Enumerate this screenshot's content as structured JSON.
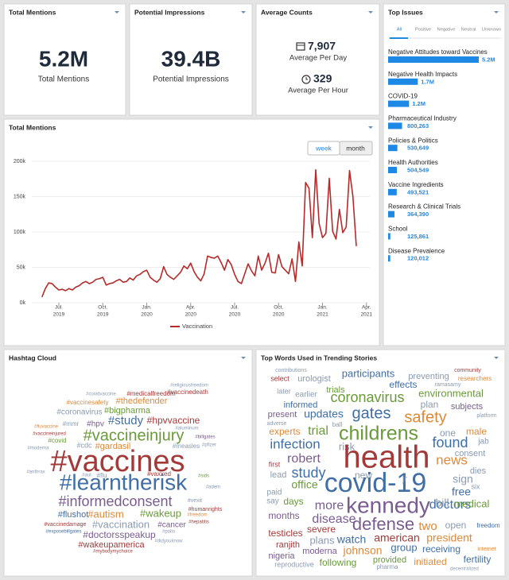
{
  "total_mentions_card": {
    "title": "Total Mentions",
    "value": "5.2M",
    "label": "Total Mentions"
  },
  "impressions_card": {
    "title": "Potential Impressions",
    "value": "39.4B",
    "label": "Potential Impressions"
  },
  "average_card": {
    "title": "Average Counts",
    "per_day": "7,907",
    "per_day_label": "Average Per Day",
    "per_hour": "329",
    "per_hour_label": "Average Per Hour"
  },
  "top_issues": {
    "title": "Top Issues",
    "tabs": [
      "All",
      "Positive",
      "Negative",
      "Neutral",
      "Unknown"
    ],
    "items": [
      "Negative Attitudes toward Vaccines",
      "Negative Health Impacts",
      "COVID-19",
      "Pharmaceutical Industry",
      "Policies & Politics",
      "Health Authorities",
      "Vaccine Ingredients",
      "Research & Clinical Trials",
      "School",
      "Disease Prevalence"
    ],
    "values": [
      5200000,
      1700000,
      1200000,
      800263,
      530649,
      504549,
      493521,
      364390,
      125861,
      120012
    ],
    "value_labels": [
      "5.2M",
      "1.7M",
      "1.2M",
      "800,263",
      "530,649",
      "504,549",
      "493,521",
      "364,390",
      "125,861",
      "120,012"
    ],
    "color": "#1e88e5"
  },
  "chart_data": {
    "type": "line",
    "title": "Total Mentions",
    "buttons": [
      "week",
      "month"
    ],
    "series": [
      {
        "name": "Vaccination",
        "color": "#b52b2b",
        "values": [
          8,
          20,
          28,
          27,
          22,
          18,
          19,
          17,
          20,
          18,
          22,
          24,
          28,
          30,
          27,
          29,
          33,
          34,
          36,
          25,
          27,
          28,
          31,
          33,
          29,
          30,
          35,
          32,
          38,
          40,
          44,
          46,
          36,
          32,
          29,
          34,
          51,
          40,
          36,
          33,
          38,
          43,
          52,
          48,
          56,
          44,
          36,
          31,
          41,
          66,
          64,
          63,
          66,
          57,
          46,
          61,
          54,
          40,
          30,
          27,
          41,
          55,
          45,
          38,
          66,
          46,
          56,
          70,
          43,
          42,
          68,
          51,
          46,
          41,
          62,
          30,
          86,
          52,
          170,
          162,
          92,
          188,
          112,
          92,
          98,
          176,
          101,
          90,
          132,
          99,
          107,
          187,
          150,
          80
        ]
      }
    ],
    "xlim": [
      -3,
      97
    ],
    "xticks": [
      {
        "value": 5,
        "label": "Jul.",
        "year": "2019"
      },
      {
        "value": 18,
        "label": "Oct.",
        "year": "2019"
      },
      {
        "value": 31,
        "label": "Jan.",
        "year": "2020"
      },
      {
        "value": 44,
        "label": "Apr.",
        "year": "2020"
      },
      {
        "value": 57,
        "label": "Jul.",
        "year": "2020"
      },
      {
        "value": 70,
        "label": "Oct.",
        "year": "2020"
      },
      {
        "value": 83,
        "label": "Jan.",
        "year": "2021"
      },
      {
        "value": 96,
        "label": "Apr.",
        "year": "2021"
      }
    ],
    "ylim": [
      0,
      200
    ],
    "yticks": [
      {
        "value": 0,
        "label": "0k"
      },
      {
        "value": 50,
        "label": "50k"
      },
      {
        "value": 100,
        "label": "100k"
      },
      {
        "value": 150,
        "label": "150k"
      },
      {
        "value": 200,
        "label": "200k"
      }
    ],
    "grid": true
  },
  "hashtag_cloud": {
    "title": "Hashtag Cloud",
    "words": [
      "#covidvaccine",
      "#medicalfreedom",
      "#vaccinesafety",
      "#thedefender",
      "#religiousfreedom",
      "#vaccinedeath",
      "#coronavirus",
      "#bigpharma",
      "#study",
      "#hpvvaccine",
      "#aluminum",
      "#fluvaccine",
      "#mmr",
      "#hpv",
      "#vaccineinjured",
      "#vaccineinjury",
      "#billgates",
      "#covid",
      "#cdc",
      "#gardasil",
      "#measles",
      "#pfizer",
      "#moderna",
      "#vaccines",
      "#anthrax",
      "#aut",
      "#flu",
      "#vaxxed",
      "#sids",
      "#learntherisk",
      "#adem",
      "#informedconsent",
      "#vexit",
      "#humanrights",
      "#flushot",
      "#autism",
      "#wakeup",
      "#freedom",
      "#hepatitis",
      "#vaccinedamage",
      "#vaccination",
      "#cancer",
      "#exposebillgates",
      "#polio",
      "#doctorsspeakup",
      "#didyouknow",
      "#wakeupamerica",
      "#mybodymychoice"
    ]
  },
  "top_words": {
    "title": "Top Words Used in Trending Stories",
    "words": [
      "contributions",
      "urologist",
      "participants",
      "preventing",
      "community",
      "researchers",
      "select",
      "later",
      "effects",
      "ramasamy",
      "trials",
      "earlier",
      "coronavirus",
      "environmental",
      "informed",
      "plan",
      "subjects",
      "present",
      "updates",
      "gates",
      "safety",
      "platform",
      "adverse",
      "ball",
      "trial",
      "childrens",
      "one",
      "male",
      "experts",
      "jab",
      "found",
      "infection",
      "risk",
      "health",
      "news",
      "consent",
      "robert",
      "first",
      "new",
      "dies",
      "study",
      "lead",
      "sign",
      "office",
      "covid-19",
      "jr",
      "six",
      "paid",
      "free",
      "say",
      "days",
      "kennedy",
      "doctors",
      "more",
      "bill",
      "medical",
      "months",
      "disease",
      "defense",
      "two",
      "open",
      "freedom",
      "testicles",
      "severe",
      "watch",
      "american",
      "president",
      "ranjith",
      "plans",
      "group",
      "receiving",
      "internet",
      "nigeria",
      "moderna",
      "johnson",
      "provided",
      "fertility",
      "reproductive",
      "following",
      "initiated",
      "pharma",
      "decentralized"
    ]
  }
}
